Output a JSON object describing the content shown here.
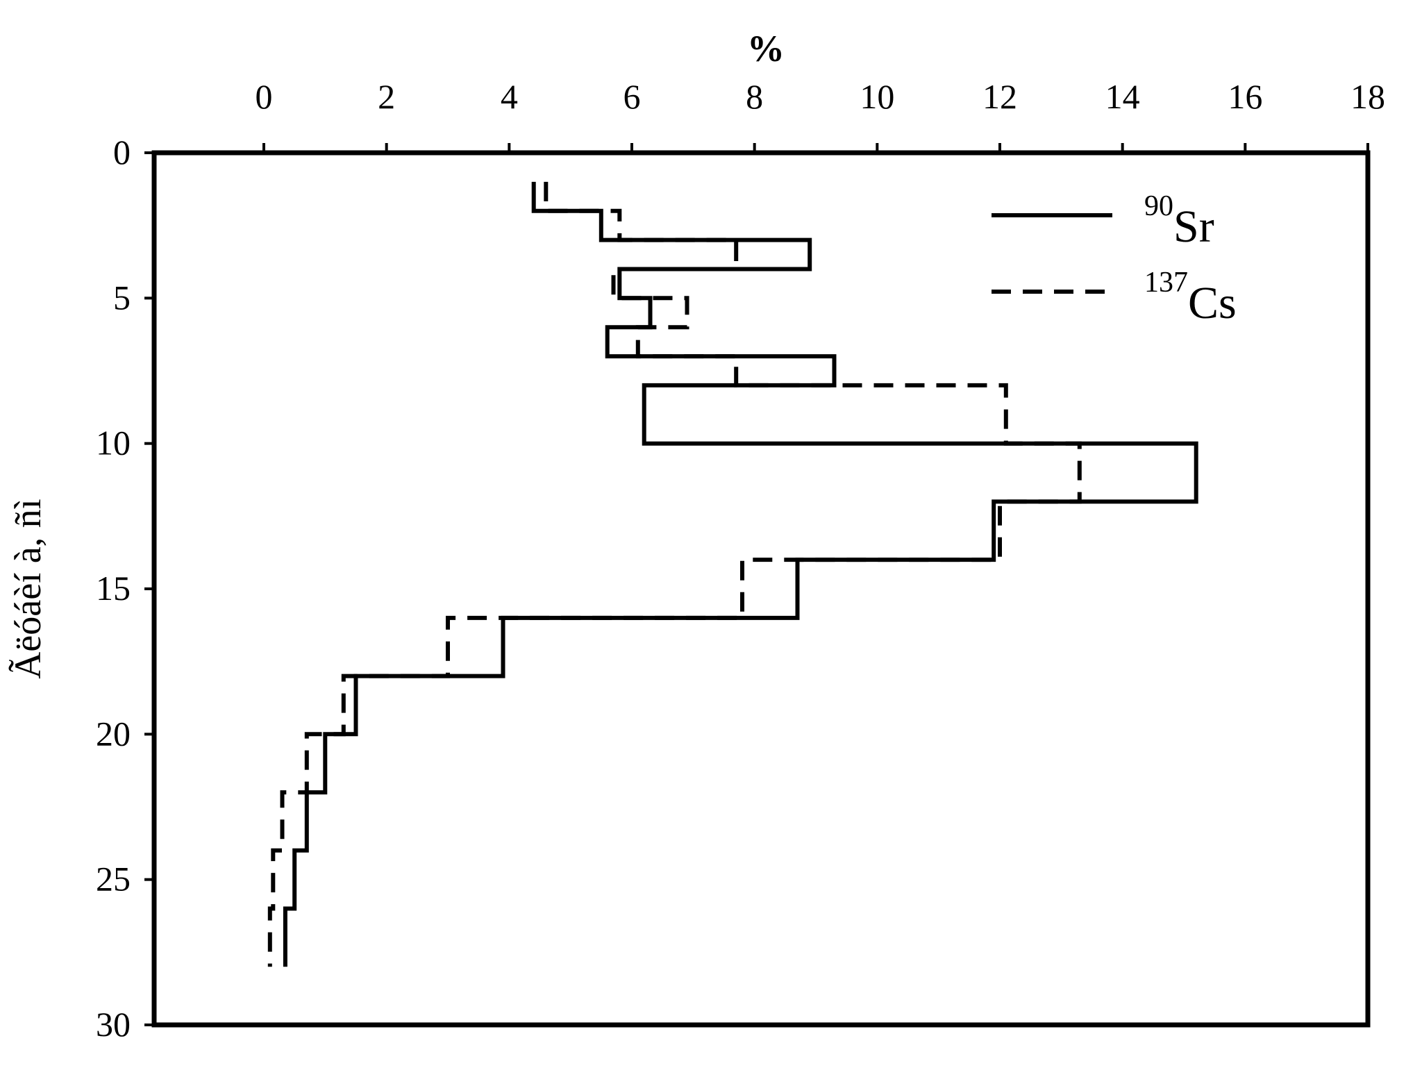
{
  "chart_data": {
    "type": "line",
    "subtype": "depth-profile step chart",
    "xlabel": "%",
    "ylabel": "Ãëóáèí à, ñì",
    "xlim": [
      0,
      18
    ],
    "ylim": [
      30,
      0
    ],
    "x_axis_position": "top",
    "y_inverted": true,
    "x_ticks": [
      "0",
      "2",
      "4",
      "6",
      "8",
      "10",
      "12",
      "14",
      "16",
      "18"
    ],
    "y_ticks": [
      "0",
      "5",
      "10",
      "15",
      "20",
      "25",
      "30"
    ],
    "grid": false,
    "legend_position": "top-right",
    "layers": [
      {
        "top": 1,
        "bottom": 2,
        "sr90": 4.4,
        "cs137": 4.6
      },
      {
        "top": 2,
        "bottom": 3,
        "sr90": 5.5,
        "cs137": 5.8
      },
      {
        "top": 3,
        "bottom": 4,
        "sr90": 8.9,
        "cs137": 7.7
      },
      {
        "top": 4,
        "bottom": 5,
        "sr90": 5.8,
        "cs137": 5.7
      },
      {
        "top": 5,
        "bottom": 6,
        "sr90": 6.3,
        "cs137": 6.9
      },
      {
        "top": 6,
        "bottom": 7,
        "sr90": 5.6,
        "cs137": 6.1
      },
      {
        "top": 7,
        "bottom": 8,
        "sr90": 9.3,
        "cs137": 7.7
      },
      {
        "top": 8,
        "bottom": 10,
        "sr90": 6.2,
        "cs137": 12.1
      },
      {
        "top": 10,
        "bottom": 12,
        "sr90": 15.2,
        "cs137": 13.3
      },
      {
        "top": 12,
        "bottom": 14,
        "sr90": 11.9,
        "cs137": 12.0
      },
      {
        "top": 14,
        "bottom": 16,
        "sr90": 8.7,
        "cs137": 7.8
      },
      {
        "top": 16,
        "bottom": 18,
        "sr90": 3.9,
        "cs137": 3.0
      },
      {
        "top": 18,
        "bottom": 20,
        "sr90": 1.5,
        "cs137": 1.3
      },
      {
        "top": 20,
        "bottom": 22,
        "sr90": 1.0,
        "cs137": 0.7
      },
      {
        "top": 22,
        "bottom": 24,
        "sr90": 0.7,
        "cs137": 0.3
      },
      {
        "top": 24,
        "bottom": 26,
        "sr90": 0.5,
        "cs137": 0.15
      },
      {
        "top": 26,
        "bottom": 28,
        "sr90": 0.35,
        "cs137": 0.1
      }
    ],
    "series": [
      {
        "key": "sr90",
        "mass_number": "90",
        "symbol": "Sr",
        "style": "solid"
      },
      {
        "key": "cs137",
        "mass_number": "137",
        "symbol": "Cs",
        "style": "dashed"
      }
    ]
  }
}
